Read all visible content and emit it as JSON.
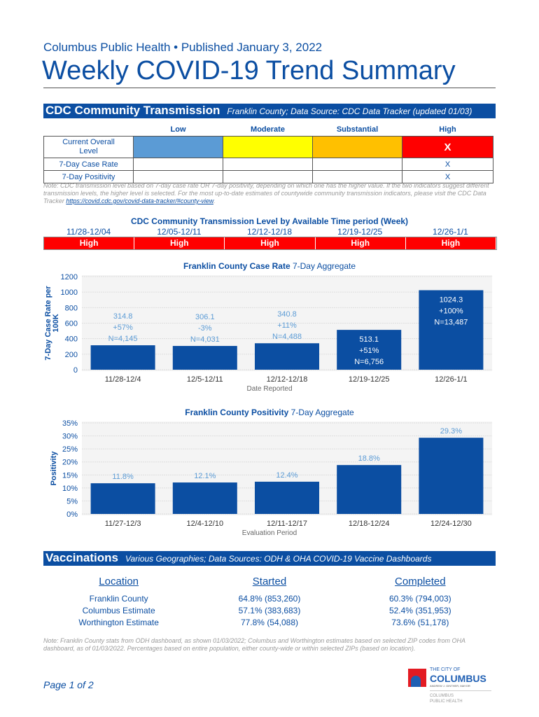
{
  "header": {
    "publisher": "Columbus Public Health • Published January 3, 2022",
    "title": "Weekly COVID-19 Trend Summary"
  },
  "cdc": {
    "heading": "CDC Community Transmission",
    "subheading": "Franklin County; Data Source: CDC Data Tracker (updated 01/03)",
    "levels": [
      "Low",
      "Moderate",
      "Substantial",
      "High"
    ],
    "level_colors": [
      "#5b9bd5",
      "#ffff00",
      "#ffc000",
      "#ff0000"
    ],
    "rows": [
      {
        "label": "Current Overall Level",
        "marks": [
          "",
          "",
          "",
          "X"
        ]
      },
      {
        "label": "7-Day Case Rate",
        "marks": [
          "",
          "",
          "",
          "X"
        ]
      },
      {
        "label": "7-Day Positivity",
        "marks": [
          "",
          "",
          "",
          "X"
        ]
      }
    ],
    "note": "Note: CDC transmission level based on 7-day case rate OR 7-day positivity, depending on which one has the higher value. If the two indicators suggest different transmission levels, the higher level is selected. For the most up-to-date estimates of countywide community transmission indicators, please visit the CDC Data Tracker ",
    "link": "https://covid.cdc.gov/covid-data-tracker/#county-view",
    "weekly_title": "CDC Community Transmission Level by Available Time period (Week)",
    "weeks": [
      "11/28-12/04",
      "12/05-12/11",
      "12/12-12/18",
      "12/19-12/25",
      "12/26-1/1"
    ],
    "weekly_levels": [
      "High",
      "High",
      "High",
      "High",
      "High"
    ]
  },
  "chart_data": [
    {
      "type": "bar",
      "title_bold": "Franklin County Case Rate",
      "title_rest": " 7-Day Aggregate",
      "xlabel": "Date Reported",
      "ylabel": "7-Day Case Rate per 100K",
      "categories": [
        "11/28-12/4",
        "12/5-12/11",
        "12/12-12/18",
        "12/19-12/25",
        "12/26-1/1"
      ],
      "values": [
        314.8,
        306.1,
        340.8,
        513.1,
        1024.3
      ],
      "labels": [
        [
          "314.8",
          "+57%",
          "N=4,145"
        ],
        [
          "306.1",
          "-3%",
          "N=4,031"
        ],
        [
          "340.8",
          "+11%",
          "N=4,488"
        ],
        [
          "513.1",
          "+51%",
          "N=6,756"
        ],
        [
          "1024.3",
          "+100%",
          "N=13,487"
        ]
      ],
      "ylim": [
        0,
        1200
      ],
      "yticks": [
        "0",
        "200",
        "400",
        "600",
        "800",
        "1000",
        "1200"
      ],
      "grid": true,
      "color": "#0b4ea2"
    },
    {
      "type": "bar",
      "title_bold": "Franklin County Positivity",
      "title_rest": " 7-Day Aggregate",
      "xlabel": "Evaluation Period",
      "ylabel": "Positivity",
      "categories": [
        "11/27-12/3",
        "12/4-12/10",
        "12/11-12/17",
        "12/18-12/24",
        "12/24-12/30"
      ],
      "values": [
        11.8,
        12.1,
        12.4,
        18.8,
        29.3
      ],
      "labels": [
        [
          "11.8%"
        ],
        [
          "12.1%"
        ],
        [
          "12.4%"
        ],
        [
          "18.8%"
        ],
        [
          "29.3%"
        ]
      ],
      "ylim": [
        0,
        35
      ],
      "yticks": [
        "0%",
        "5%",
        "10%",
        "15%",
        "20%",
        "25%",
        "30%",
        "35%"
      ],
      "grid": true,
      "color": "#0b4ea2"
    }
  ],
  "vaccinations": {
    "heading": "Vaccinations",
    "subheading": "Various Geographies; Data Sources: ODH & OHA COVID-19 Vaccine Dashboards",
    "columns": [
      "Location",
      "Started",
      "Completed"
    ],
    "rows": [
      [
        "Franklin County",
        "64.8% (853,260)",
        "60.3% (794,003)"
      ],
      [
        "Columbus Estimate",
        "57.1% (383,683)",
        "52.4% (351,953)"
      ],
      [
        "Worthington Estimate",
        "77.8% (54,088)",
        "73.6% (51,178)"
      ]
    ],
    "note": "Note: Franklin County stats from ODH dashboard, as shown 01/03/2022; Columbus and Worthington estimates based on selected ZIP codes from OHA dashboard, as of 01/03/2022. Percentages based on entire population, either county-wide or within selected ZIPs (based on location)."
  },
  "footer": {
    "page": "Page 1 of 2",
    "logo": {
      "line1": "THE CITY OF",
      "line2": "COLUMBUS",
      "line3": "ANDREW J. GINTHER, MAYOR",
      "line4": "COLUMBUS",
      "line5": "PUBLIC HEALTH"
    }
  }
}
